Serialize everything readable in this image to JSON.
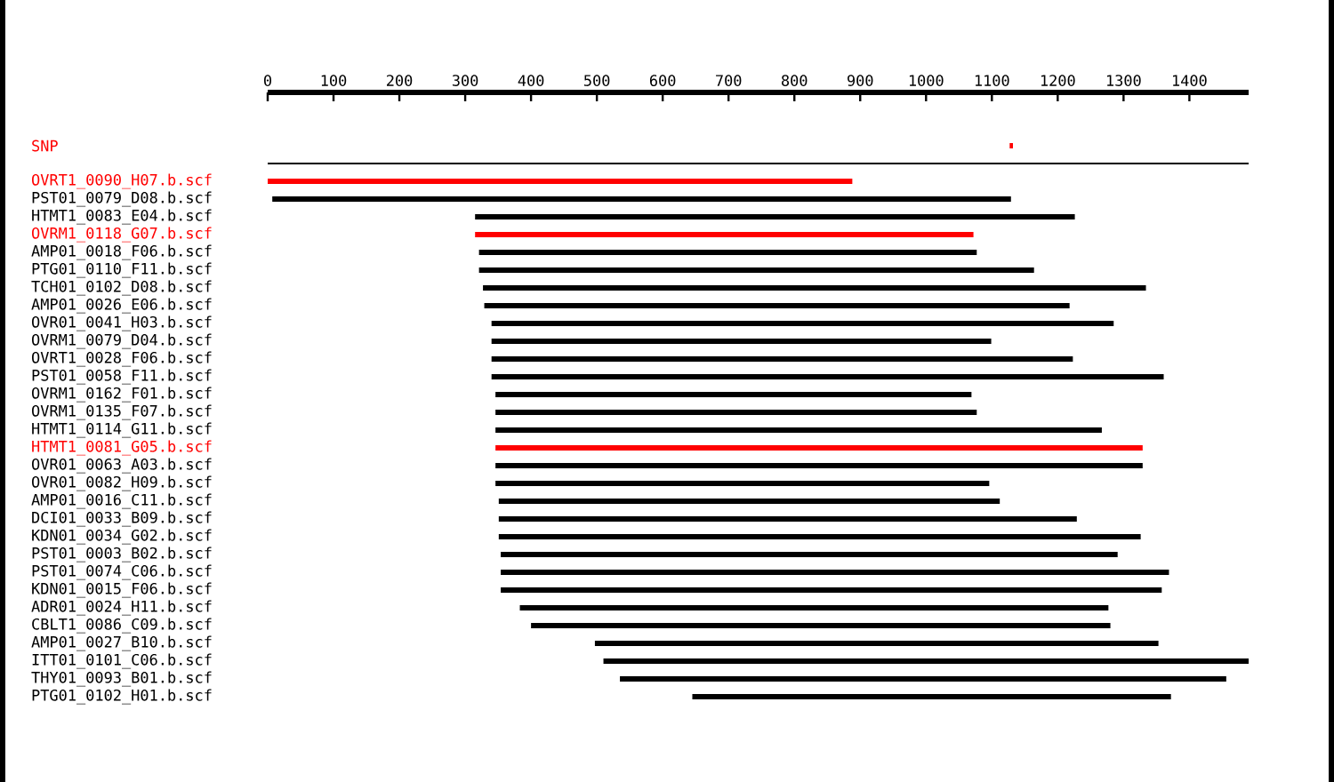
{
  "chart_data": {
    "type": "bar",
    "orientation": "horizontal",
    "categories": [
      "SNP",
      null,
      "OVRT1_0090_H07.b.scf",
      "PST01_0079_D08.b.scf",
      "HTMT1_0083_E04.b.scf",
      "OVRM1_0118_G07.b.scf",
      "AMP01_0018_F06.b.scf",
      "PTG01_0110_F11.b.scf",
      "TCH01_0102_D08.b.scf",
      "AMP01_0026_E06.b.scf",
      "OVR01_0041_H03.b.scf",
      "OVRM1_0079_D04.b.scf",
      "OVRT1_0028_F06.b.scf",
      "PST01_0058_F11.b.scf",
      "OVRM1_0162_F01.b.scf",
      "OVRM1_0135_F07.b.scf",
      "HTMT1_0114_G11.b.scf",
      "HTMT1_0081_G05.b.scf",
      "OVR01_0063_A03.b.scf",
      "OVR01_0082_H09.b.scf",
      "AMP01_0016_C11.b.scf",
      "DCI01_0033_B09.b.scf",
      "KDN01_0034_G02.b.scf",
      "PST01_0003_B02.b.scf",
      "PST01_0074_C06.b.scf",
      "KDN01_0015_F06.b.scf",
      "ADR01_0024_H11.b.scf",
      "CBLT1_0086_C09.b.scf",
      "AMP01_0027_B10.b.scf",
      "ITT01_0101_C06.b.scf",
      "THY01_0093_B01.b.scf",
      "PTG01_0102_H01.b.scf"
    ],
    "base": [
      1127,
      0,
      0,
      7,
      315,
      315,
      321,
      321,
      327,
      329,
      340,
      340,
      340,
      340,
      346,
      346,
      346,
      346,
      346,
      346,
      351,
      351,
      351,
      354,
      354,
      354,
      383,
      400,
      497,
      510,
      535,
      645
    ],
    "values": [
      5,
      1490,
      888,
      1122,
      911,
      757,
      756,
      843,
      1007,
      889,
      945,
      759,
      883,
      1021,
      723,
      731,
      921,
      983,
      983,
      750,
      761,
      878,
      975,
      937,
      1015,
      1004,
      894,
      880,
      856,
      980,
      921,
      727
    ],
    "colors": [
      "#ff0000",
      "#000000",
      "#ff0000",
      "#000000",
      "#000000",
      "#ff0000",
      "#000000",
      "#000000",
      "#000000",
      "#000000",
      "#000000",
      "#000000",
      "#000000",
      "#000000",
      "#000000",
      "#000000",
      "#000000",
      "#ff0000",
      "#000000",
      "#000000",
      "#000000",
      "#000000",
      "#000000",
      "#000000",
      "#000000",
      "#000000",
      "#000000",
      "#000000",
      "#000000",
      "#000000",
      "#000000",
      "#000000"
    ],
    "xlim": [
      0,
      1490
    ],
    "xticks": [
      0,
      100,
      200,
      300,
      400,
      500,
      600,
      700,
      800,
      900,
      1000,
      1100,
      1200,
      1300,
      1400
    ],
    "grid": false
  }
}
